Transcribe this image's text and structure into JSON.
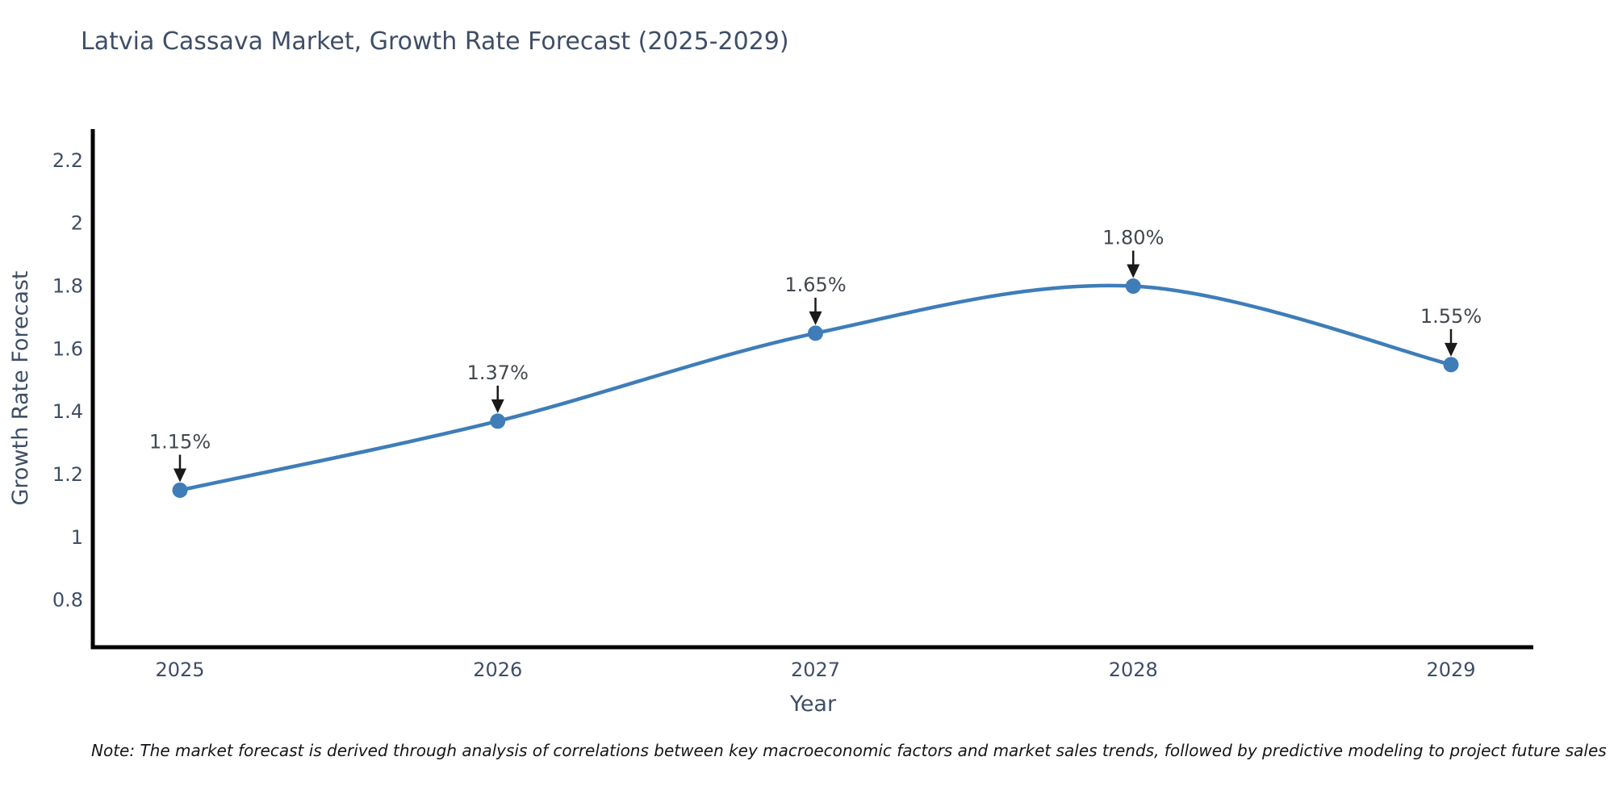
{
  "chart_data": {
    "type": "line",
    "title": "Latvia Cassava Market, Growth Rate Forecast (2025-2029)",
    "xlabel": "Year",
    "ylabel": "Growth Rate Forecast",
    "categories": [
      "2025",
      "2026",
      "2027",
      "2028",
      "2029"
    ],
    "series": [
      {
        "name": "Growth Rate Forecast",
        "values": [
          1.15,
          1.37,
          1.65,
          1.8,
          1.55
        ]
      }
    ],
    "data_labels": [
      "1.15%",
      "1.37%",
      "1.65%",
      "1.80%",
      "1.55%"
    ],
    "ytick_labels": [
      "0.8",
      "1",
      "1.2",
      "1.4",
      "1.6",
      "1.8",
      "2",
      "2.2"
    ],
    "ytick_values": [
      0.8,
      1.0,
      1.2,
      1.4,
      1.6,
      1.8,
      2.0,
      2.2
    ],
    "ylim": [
      0.65,
      2.3
    ],
    "grid": false,
    "legend": "none",
    "smooth": true,
    "colors": {
      "line": "#3e7db8",
      "marker": "#3e7db8",
      "arrow": "#1a1a1a",
      "annotation_text": "#42484f",
      "axis_text": "#3f4e66",
      "spine": "#000000",
      "background": "#ffffff"
    }
  },
  "note": "Note: The market forecast is derived through analysis of correlations between key macroeconomic factors and market sales trends, followed by predictive modeling to project future sales"
}
